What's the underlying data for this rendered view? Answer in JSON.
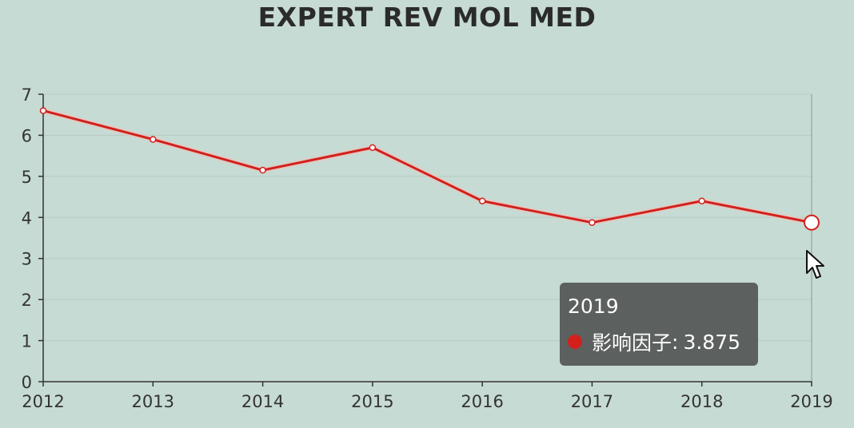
{
  "chart_data": {
    "type": "line",
    "title": "EXPERT REV MOL MED",
    "xlabel": "",
    "ylabel": "",
    "categories": [
      "2012",
      "2013",
      "2014",
      "2015",
      "2016",
      "2017",
      "2018",
      "2019"
    ],
    "series": [
      {
        "name": "影响因子",
        "values": [
          6.6,
          5.9,
          5.15,
          5.7,
          4.4,
          3.875,
          4.4,
          3.875
        ]
      }
    ],
    "ylim": [
      0,
      7
    ],
    "yticks": [
      "0",
      "1",
      "2",
      "3",
      "4",
      "5",
      "6",
      "7"
    ],
    "grid": true,
    "line_color": "#d2211d",
    "background_color": "#c6dbd3"
  },
  "tooltip": {
    "x_label": "2019",
    "series_name": "影响因子",
    "separator": ":",
    "value": "3.875"
  }
}
